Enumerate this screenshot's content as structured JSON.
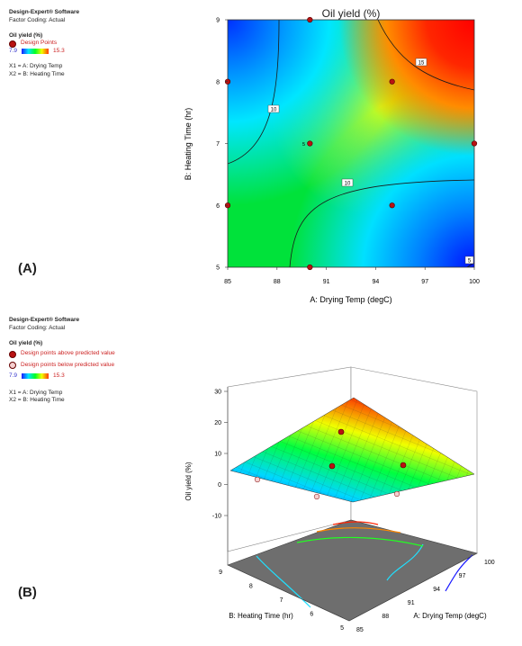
{
  "panel_a": {
    "label": "(A)",
    "legend": {
      "software": "Design-Expert® Software",
      "coding": "Factor Coding: Actual",
      "response": "Oil yield (%)",
      "points_label": "Design Points",
      "range_min": "7.9",
      "range_max": "15.3",
      "x1_def": "X1 = A: Drying Temp",
      "x2_def": "X2 = B: Heating Time"
    }
  },
  "panel_b": {
    "label": "(B)",
    "legend": {
      "software": "Design-Expert® Software",
      "coding": "Factor Coding: Actual",
      "response": "Oil yield (%)",
      "above_label": "Design points above predicted value",
      "below_label": "Design points below predicted value",
      "range_min": "7.9",
      "range_max": "15.3",
      "x1_def": "X1 = A: Drying Temp",
      "x2_def": "X2 = B: Heating Time"
    }
  },
  "chart_data": [
    {
      "type": "heatmap",
      "title": "Oil yield (%)",
      "xlabel": "A: Drying Temp (degC)",
      "ylabel": "B: Heating Time (hr)",
      "xlim": [
        85,
        100
      ],
      "ylim": [
        5,
        9
      ],
      "xticks": [
        "85",
        "88",
        "91",
        "94",
        "97",
        "100"
      ],
      "yticks": [
        "5",
        "6",
        "7",
        "8",
        "9"
      ],
      "color_range": [
        7.9,
        15.3
      ],
      "contour_labels": [
        "15",
        "10",
        "10",
        "5",
        "5"
      ],
      "center_point_label": "5",
      "design_points": [
        {
          "x": 85,
          "y": 8
        },
        {
          "x": 85,
          "y": 6
        },
        {
          "x": 90,
          "y": 9
        },
        {
          "x": 90,
          "y": 7
        },
        {
          "x": 90,
          "y": 5
        },
        {
          "x": 95,
          "y": 8
        },
        {
          "x": 95,
          "y": 6
        },
        {
          "x": 100,
          "y": 7
        }
      ]
    },
    {
      "type": "surface",
      "zlabel": "Oil yield (%)",
      "xlabel": "A: Drying Temp (degC)",
      "ylabel": "B: Heating Time (hr)",
      "zticks": [
        "30",
        "20",
        "10",
        "0",
        "-10"
      ],
      "a_ticks": [
        "85",
        "88",
        "91",
        "94",
        "97",
        "100"
      ],
      "b_ticks": [
        "5",
        "6",
        "7",
        "8",
        "9"
      ],
      "zlim": [
        -10,
        30
      ]
    }
  ]
}
